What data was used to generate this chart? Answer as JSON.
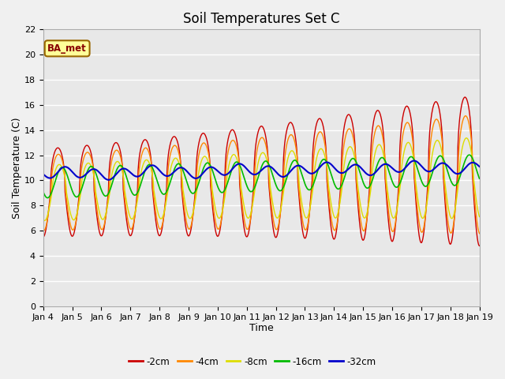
{
  "title": "Soil Temperatures Set C",
  "xlabel": "Time",
  "ylabel": "Soil Temperature (C)",
  "ylim": [
    0,
    22
  ],
  "xtick_labels": [
    "Jan 4",
    "Jan 5",
    "Jan 6",
    "Jan 7",
    "Jan 8",
    "Jan 9",
    "Jan 10",
    "Jan 11",
    "Jan 12",
    "Jan 13",
    "Jan 14",
    "Jan 15",
    "Jan 16",
    "Jan 17",
    "Jan 18",
    "Jan 19"
  ],
  "series_colors": [
    "#cc0000",
    "#ff8800",
    "#dddd00",
    "#00bb00",
    "#0000cc"
  ],
  "series_labels": [
    "-2cm",
    "-4cm",
    "-8cm",
    "-16cm",
    "-32cm"
  ],
  "annotation_text": "BA_met",
  "annotation_bg": "#ffff99",
  "annotation_border": "#996600",
  "fig_bg": "#f0f0f0",
  "plot_bg": "#e8e8e8",
  "grid_color": "#ffffff",
  "title_fontsize": 12,
  "axis_label_fontsize": 9,
  "tick_fontsize": 8
}
